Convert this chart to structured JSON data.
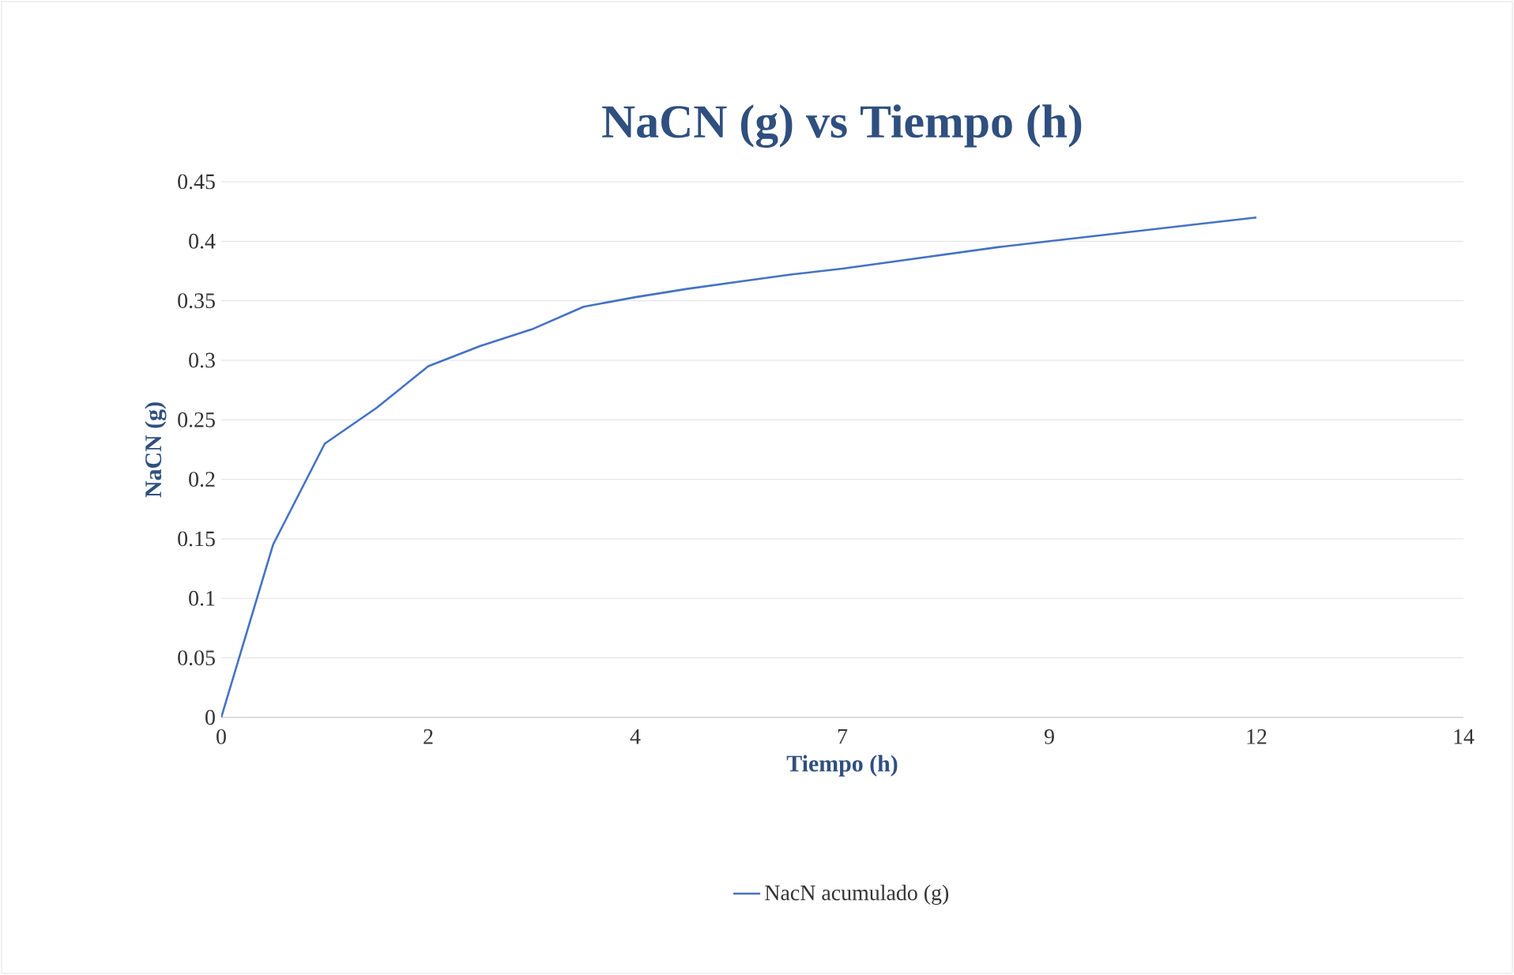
{
  "chart_data": {
    "type": "line",
    "title": "NaCN (g) vs Tiempo (h)",
    "xlabel": "Tiempo (h)",
    "ylabel": "NaCN (g)",
    "categories": [
      "0",
      null,
      null,
      null,
      "2",
      null,
      null,
      null,
      "4",
      null,
      null,
      null,
      "7",
      null,
      null,
      null,
      "9",
      null,
      null,
      null,
      "12",
      null,
      null,
      null,
      "14"
    ],
    "series": [
      {
        "name": "NacN acumulado (g)",
        "color": "#4472c4",
        "values": [
          0,
          0.145,
          0.23,
          0.26,
          0.295,
          0.312,
          0.326,
          0.345,
          0.353,
          0.36,
          0.366,
          0.372,
          0.377,
          0.383,
          0.389,
          0.395,
          0.4,
          0.405,
          0.41,
          0.415,
          0.42,
          null,
          null,
          null,
          null
        ]
      }
    ],
    "ylim": [
      0,
      0.45
    ],
    "yticks": [
      0,
      0.05,
      0.1,
      0.15,
      0.2,
      0.25,
      0.3,
      0.35,
      0.4,
      0.45
    ],
    "grid": "y",
    "legend": "bottom",
    "marker": "none",
    "line_style": "solid"
  }
}
